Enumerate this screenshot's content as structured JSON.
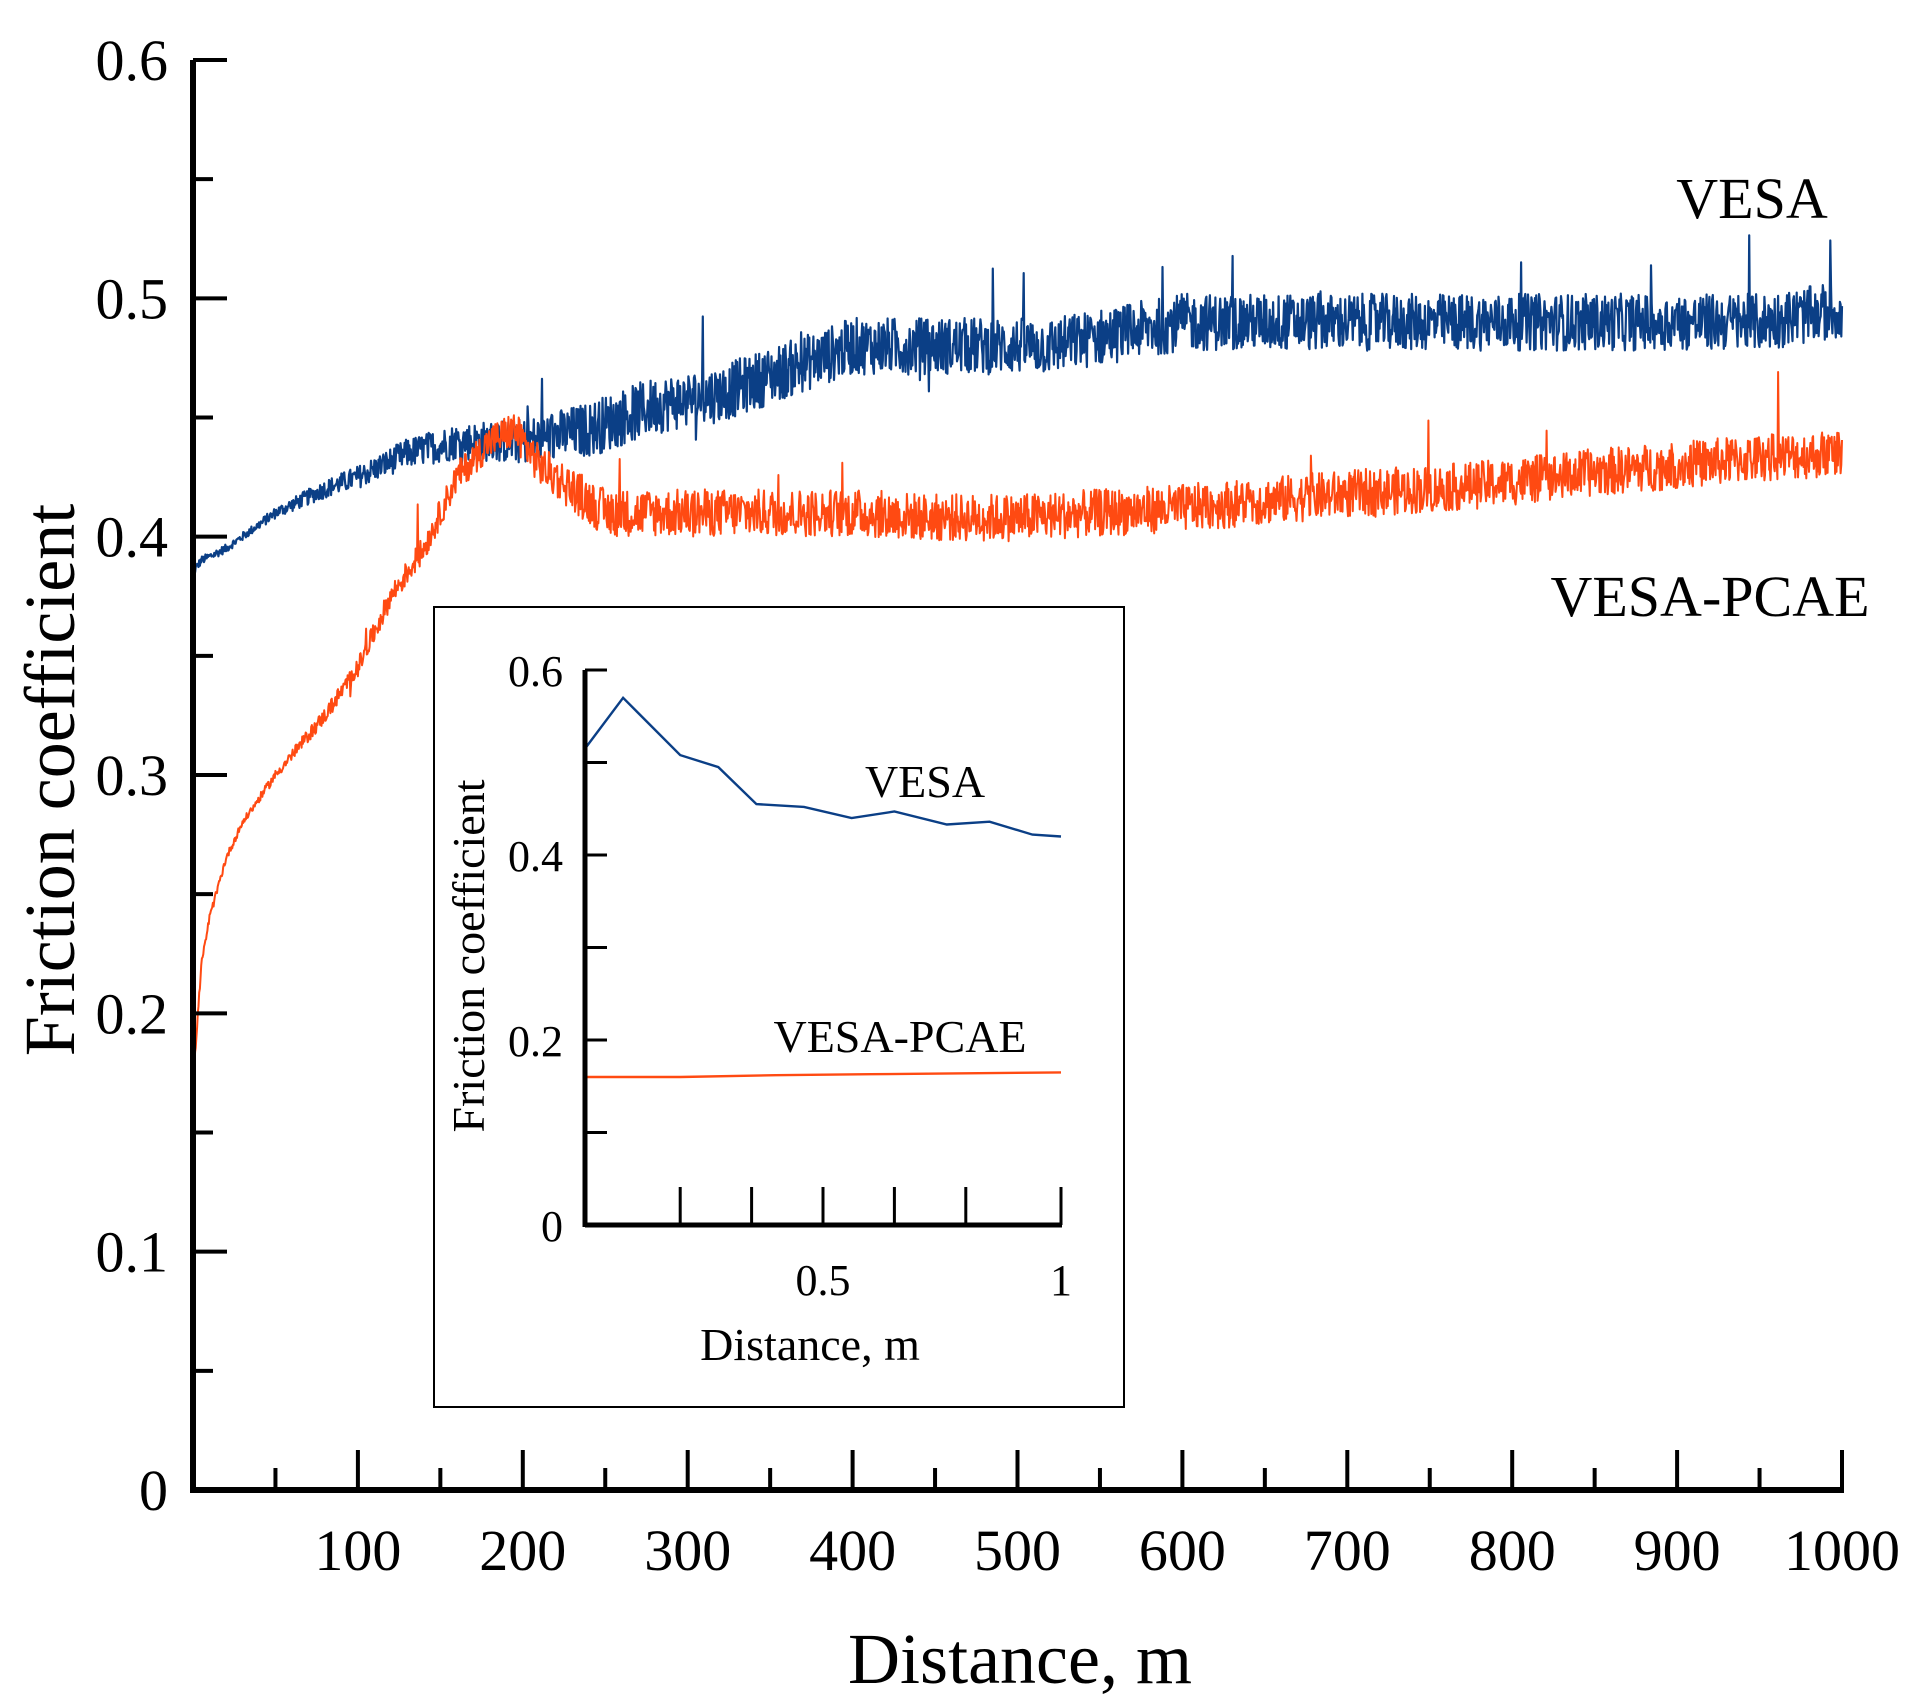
{
  "chart_data": [
    {
      "type": "line",
      "title": "",
      "xlabel": "Distance, m",
      "ylabel": "Friction coefficient",
      "xlim": [
        0,
        1000
      ],
      "ylim": [
        0,
        0.6
      ],
      "grid": false,
      "xticks": [
        100,
        200,
        300,
        400,
        500,
        600,
        700,
        800,
        900,
        1000
      ],
      "xtick_labels": [
        "100",
        "200",
        "300",
        "400",
        "500",
        "600",
        "700",
        "800",
        "900",
        "1000"
      ],
      "yticks": [
        0,
        0.1,
        0.2,
        0.3,
        0.4,
        0.5,
        0.6
      ],
      "ytick_labels": [
        "0",
        "0.1",
        "0.2",
        "0.3",
        "0.4",
        "0.5",
        "0.6"
      ],
      "series": [
        {
          "name": "VESA",
          "color": "#0b3f86",
          "x": [
            0,
            5,
            20,
            50,
            80,
            100,
            130,
            160,
            200,
            240,
            280,
            320,
            360,
            400,
            440,
            480,
            520,
            560,
            600,
            650,
            700,
            750,
            800,
            850,
            900,
            950,
            1000
          ],
          "values": [
            0.385,
            0.39,
            0.395,
            0.41,
            0.42,
            0.425,
            0.435,
            0.44,
            0.44,
            0.445,
            0.455,
            0.46,
            0.47,
            0.48,
            0.48,
            0.48,
            0.48,
            0.485,
            0.49,
            0.49,
            0.49,
            0.49,
            0.49,
            0.49,
            0.49,
            0.49,
            0.495
          ],
          "noise_amplitude": 0.012
        },
        {
          "name": "VESA-PCAE",
          "color": "#ff4a12",
          "x": [
            0,
            5,
            10,
            20,
            30,
            50,
            80,
            100,
            120,
            140,
            160,
            180,
            195,
            210,
            230,
            250,
            300,
            350,
            400,
            450,
            500,
            550,
            600,
            650,
            700,
            750,
            800,
            850,
            900,
            950,
            1000
          ],
          "values": [
            0.17,
            0.22,
            0.24,
            0.265,
            0.28,
            0.3,
            0.325,
            0.345,
            0.375,
            0.395,
            0.425,
            0.44,
            0.445,
            0.43,
            0.42,
            0.41,
            0.41,
            0.41,
            0.41,
            0.408,
            0.408,
            0.41,
            0.412,
            0.415,
            0.418,
            0.42,
            0.423,
            0.427,
            0.43,
            0.433,
            0.435
          ],
          "noise_amplitude": 0.01
        }
      ]
    },
    {
      "type": "line",
      "title": "",
      "xlabel": "Distance, m",
      "ylabel": "Friction coefficient",
      "xlim": [
        0.0,
        1.0
      ],
      "ylim": [
        0,
        0.6
      ],
      "grid": false,
      "xticks": [
        0.5,
        1
      ],
      "xtick_labels": [
        "0.5",
        "1"
      ],
      "yticks": [
        0,
        0.2,
        0.4,
        0.6
      ],
      "ytick_labels": [
        "0",
        "0.2",
        "0.4",
        "0.6"
      ],
      "series": [
        {
          "name": "VESA",
          "color": "#0b3f86",
          "x": [
            0.0,
            0.08,
            0.2,
            0.28,
            0.36,
            0.46,
            0.56,
            0.65,
            0.76,
            0.85,
            0.94,
            1.0
          ],
          "values": [
            0.515,
            0.57,
            0.508,
            0.495,
            0.455,
            0.452,
            0.44,
            0.447,
            0.433,
            0.436,
            0.422,
            0.42
          ]
        },
        {
          "name": "VESA-PCAE",
          "color": "#ff4a12",
          "x": [
            0.0,
            0.2,
            0.4,
            0.6,
            0.8,
            1.0
          ],
          "values": [
            0.16,
            0.16,
            0.162,
            0.163,
            0.164,
            0.165
          ]
        }
      ]
    }
  ]
}
